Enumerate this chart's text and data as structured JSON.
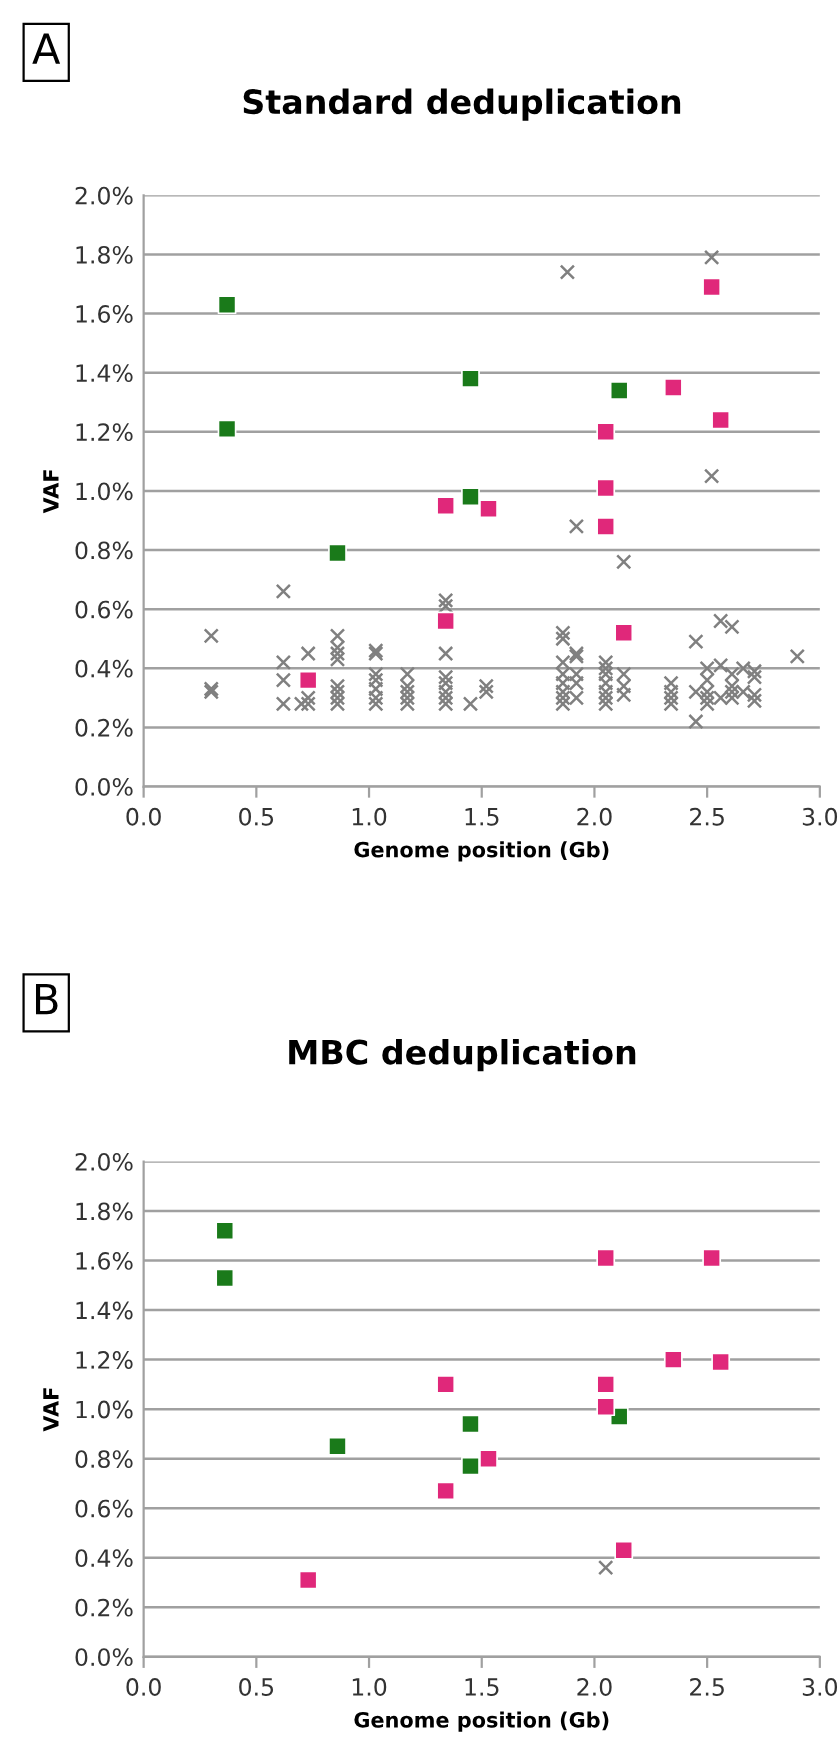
{
  "chart_data": [
    {
      "type": "scatter",
      "title": "Standard deduplication",
      "xlabel": "Genome position (Gb)",
      "ylabel": "VAF",
      "annotations": [
        "A"
      ],
      "xlim": [
        0,
        3
      ],
      "xticks": [
        {
          "value": 0,
          "label": "0.0"
        },
        {
          "value": 0.5,
          "label": "0.5"
        },
        {
          "value": 1,
          "label": "1.0"
        },
        {
          "value": 1.5,
          "label": "1.5"
        },
        {
          "value": 2,
          "label": "2.0"
        },
        {
          "value": 2.5,
          "label": "2.5"
        },
        {
          "value": 3,
          "label": "3.0"
        }
      ],
      "ylim": [
        0,
        2
      ],
      "yticks": [
        {
          "value": 0,
          "label": "0.0%"
        },
        {
          "value": 0.2,
          "label": "0.2%"
        },
        {
          "value": 0.4,
          "label": "0.4%"
        },
        {
          "value": 0.6,
          "label": "0.6%"
        },
        {
          "value": 0.8,
          "label": "0.8%"
        },
        {
          "value": 1,
          "label": "1.0%"
        },
        {
          "value": 1.2,
          "label": "1.2%"
        },
        {
          "value": 1.4,
          "label": "1.4%"
        },
        {
          "value": 1.6,
          "label": "1.6%"
        },
        {
          "value": 1.8,
          "label": "1.8%"
        },
        {
          "value": 2,
          "label": "2.0%"
        }
      ],
      "grid": "y",
      "series": [
        {
          "color": "#808080",
          "marker": "cross",
          "x": [
            1.88,
            2.52,
            2.52,
            1.92,
            2.13,
            0.62,
            1.34,
            1.34,
            0.3,
            0.3,
            0.3,
            0.62,
            0.62,
            0.62,
            0.7,
            0.73,
            0.73,
            0.73,
            0.86,
            0.86,
            0.86,
            0.86,
            0.86,
            0.86,
            0.86,
            0.86,
            1.03,
            1.03,
            1.03,
            1.03,
            1.03,
            1.03,
            1.03,
            1.17,
            1.17,
            1.17,
            1.17,
            1.17,
            1.34,
            1.34,
            1.34,
            1.34,
            1.34,
            1.34,
            1.45,
            1.52,
            1.52,
            1.86,
            1.86,
            1.86,
            1.86,
            1.86,
            1.86,
            1.86,
            1.86,
            1.92,
            1.92,
            1.92,
            1.92,
            1.92,
            2.05,
            2.05,
            2.05,
            2.05,
            2.05,
            2.05,
            2.05,
            2.13,
            2.13,
            2.13,
            2.34,
            2.34,
            2.34,
            2.34,
            2.45,
            2.45,
            2.45,
            2.5,
            2.5,
            2.5,
            2.5,
            2.5,
            2.56,
            2.56,
            2.56,
            2.61,
            2.61,
            2.61,
            2.61,
            2.61,
            2.66,
            2.66,
            2.71,
            2.71,
            2.71,
            2.71,
            2.9
          ],
          "values": [
            1.74,
            1.79,
            1.05,
            0.88,
            0.76,
            0.66,
            0.63,
            0.61,
            0.51,
            0.33,
            0.32,
            0.42,
            0.36,
            0.28,
            0.28,
            0.45,
            0.28,
            0.3,
            0.51,
            0.47,
            0.45,
            0.43,
            0.34,
            0.32,
            0.3,
            0.28,
            0.46,
            0.45,
            0.38,
            0.36,
            0.33,
            0.3,
            0.28,
            0.38,
            0.34,
            0.32,
            0.3,
            0.28,
            0.45,
            0.37,
            0.35,
            0.32,
            0.3,
            0.28,
            0.28,
            0.34,
            0.32,
            0.52,
            0.5,
            0.42,
            0.38,
            0.35,
            0.32,
            0.3,
            0.28,
            0.45,
            0.44,
            0.38,
            0.35,
            0.3,
            0.42,
            0.4,
            0.38,
            0.35,
            0.32,
            0.3,
            0.28,
            0.38,
            0.34,
            0.31,
            0.35,
            0.32,
            0.3,
            0.28,
            0.49,
            0.32,
            0.22,
            0.4,
            0.36,
            0.32,
            0.3,
            0.28,
            0.56,
            0.41,
            0.3,
            0.54,
            0.38,
            0.34,
            0.32,
            0.3,
            0.4,
            0.32,
            0.39,
            0.37,
            0.31,
            0.29,
            0.44
          ]
        },
        {
          "color": "#1a7a1a",
          "marker": "square",
          "x": [
            0.37,
            0.37,
            0.86,
            1.45,
            1.45,
            2.11
          ],
          "values": [
            1.63,
            1.21,
            0.79,
            1.38,
            0.98,
            1.34
          ]
        },
        {
          "color": "#e0287a",
          "marker": "square",
          "x": [
            0.73,
            1.34,
            1.34,
            1.53,
            2.05,
            2.05,
            2.05,
            2.13,
            2.35,
            2.52,
            2.56
          ],
          "values": [
            0.36,
            0.95,
            0.56,
            0.94,
            1.2,
            1.01,
            0.88,
            0.52,
            1.35,
            1.69,
            1.24
          ]
        }
      ]
    },
    {
      "type": "scatter",
      "title": "MBC deduplication",
      "xlabel": "Genome position (Gb)",
      "ylabel": "VAF",
      "annotations": [
        "B"
      ],
      "xlim": [
        0,
        3
      ],
      "xticks": [
        {
          "value": 0,
          "label": "0.0"
        },
        {
          "value": 0.5,
          "label": "0.5"
        },
        {
          "value": 1,
          "label": "1.0"
        },
        {
          "value": 1.5,
          "label": "1.5"
        },
        {
          "value": 2,
          "label": "2.0"
        },
        {
          "value": 2.5,
          "label": "2.5"
        },
        {
          "value": 3,
          "label": "3.0"
        }
      ],
      "ylim": [
        0,
        2
      ],
      "yticks": [
        {
          "value": 0,
          "label": "0.0%"
        },
        {
          "value": 0.2,
          "label": "0.2%"
        },
        {
          "value": 0.4,
          "label": "0.4%"
        },
        {
          "value": 0.6,
          "label": "0.6%"
        },
        {
          "value": 0.8,
          "label": "0.8%"
        },
        {
          "value": 1,
          "label": "1.0%"
        },
        {
          "value": 1.2,
          "label": "1.2%"
        },
        {
          "value": 1.4,
          "label": "1.4%"
        },
        {
          "value": 1.6,
          "label": "1.6%"
        },
        {
          "value": 1.8,
          "label": "1.8%"
        },
        {
          "value": 2,
          "label": "2.0%"
        }
      ],
      "grid": "y",
      "series": [
        {
          "color": "#808080",
          "marker": "cross",
          "x": [
            2.05
          ],
          "values": [
            0.36
          ]
        },
        {
          "color": "#1a7a1a",
          "marker": "square",
          "x": [
            0.36,
            0.36,
            0.86,
            1.45,
            1.45,
            2.11
          ],
          "values": [
            1.72,
            1.53,
            0.85,
            0.94,
            0.77,
            0.97
          ]
        },
        {
          "color": "#e0287a",
          "marker": "square",
          "x": [
            0.73,
            1.34,
            1.34,
            1.53,
            2.05,
            2.05,
            2.05,
            2.13,
            2.35,
            2.52,
            2.56
          ],
          "values": [
            0.31,
            1.1,
            0.67,
            0.8,
            1.61,
            1.1,
            1.01,
            0.43,
            1.2,
            1.61,
            1.19
          ]
        }
      ]
    }
  ]
}
